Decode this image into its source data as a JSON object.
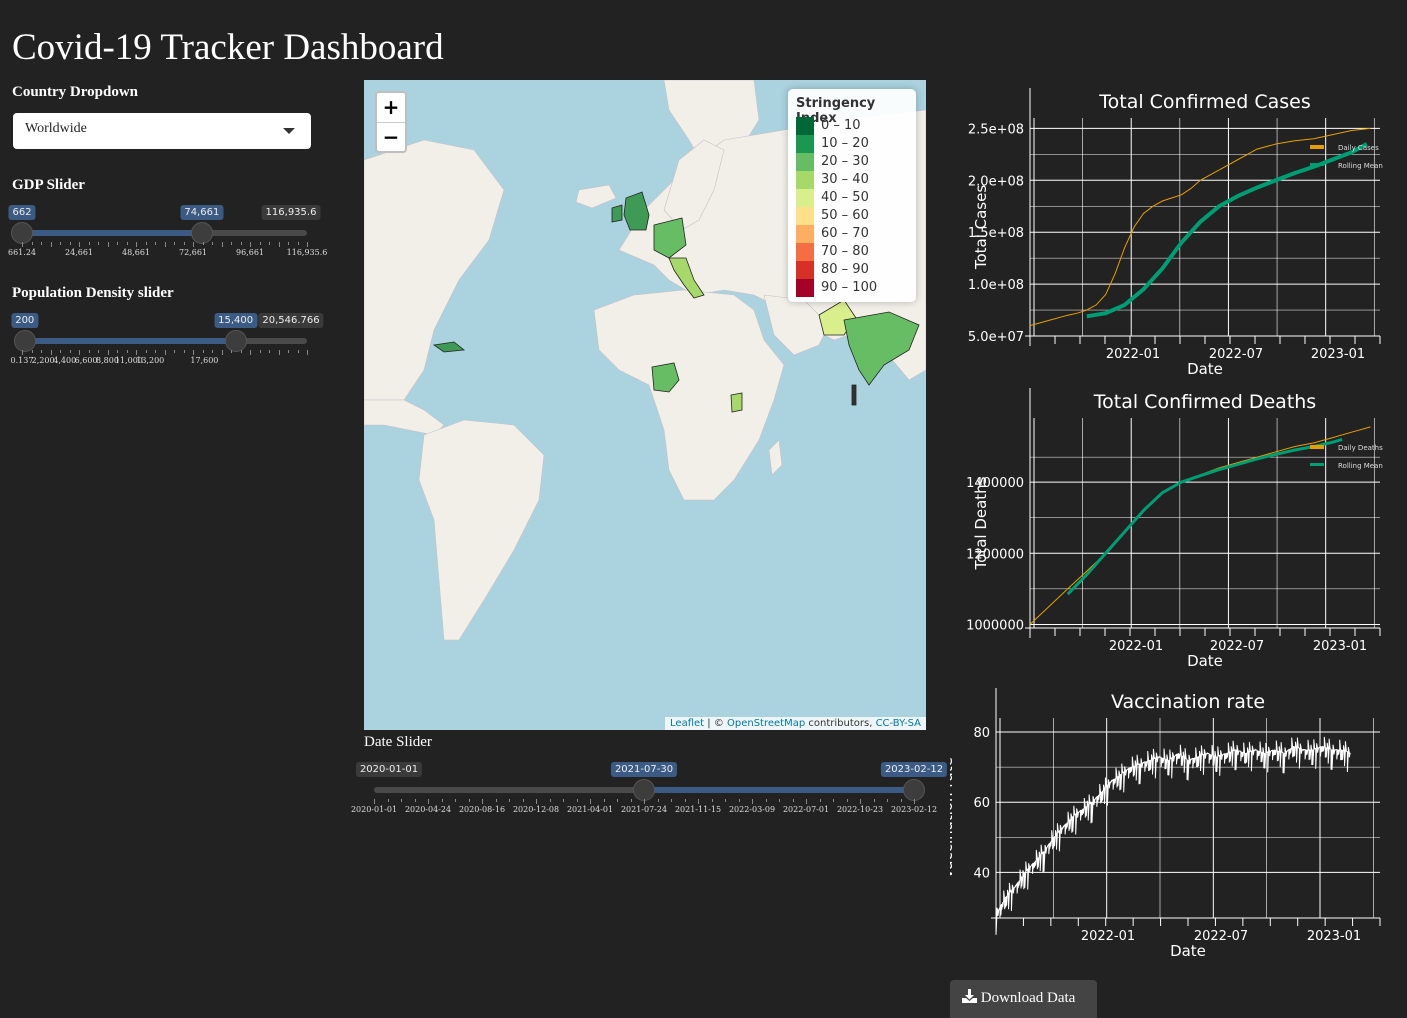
{
  "title": "Covid-19 Tracker Dashboard",
  "country": {
    "label": "Country Dropdown",
    "selected": "Worldwide"
  },
  "gdp": {
    "label": "GDP Slider",
    "low": "662",
    "high": "74,661",
    "max": "116,935.6",
    "low_frac": 0.0,
    "high_frac": 0.631,
    "ticks": [
      "661.24",
      "24,661",
      "48,661",
      "72,661",
      "96,661",
      "116,935.6"
    ]
  },
  "density": {
    "label": "Population Density slider",
    "low": "200",
    "high": "15,400",
    "max": "20,546.766",
    "low_frac": 0.0097,
    "high_frac": 0.7495,
    "ticks": [
      "0.137",
      "2,200",
      "4,400",
      "6,600",
      "8,800",
      "11,000",
      "13,200",
      "17,600"
    ]
  },
  "date": {
    "label": "Date Slider",
    "min": "2020-01-01",
    "low": "2021-07-30",
    "high": "2023-02-12",
    "ticks": [
      "2020-01-01",
      "2020-04-24",
      "2020-08-16",
      "2020-12-08",
      "2021-04-01",
      "2021-07-24",
      "2021-11-15",
      "2022-03-09",
      "2022-07-01",
      "2022-10-23",
      "2023-02-12"
    ]
  },
  "map": {
    "zoom_in": "+",
    "zoom_out": "−",
    "legend": {
      "title": "Stringency Index",
      "items": [
        {
          "label": "0 – 10",
          "color": "#006837"
        },
        {
          "label": "10 – 20",
          "color": "#1a9850"
        },
        {
          "label": "20 – 30",
          "color": "#66bd63"
        },
        {
          "label": "30 – 40",
          "color": "#a6d96a"
        },
        {
          "label": "40 – 50",
          "color": "#d9ef8b"
        },
        {
          "label": "50 – 60",
          "color": "#fee08b"
        },
        {
          "label": "60 – 70",
          "color": "#fdae61"
        },
        {
          "label": "70 – 80",
          "color": "#f46d43"
        },
        {
          "label": "80 – 90",
          "color": "#d73027"
        },
        {
          "label": "90 – 100",
          "color": "#a50026"
        }
      ]
    },
    "attribution": {
      "leaflet": "Leaflet",
      "sep": " | © ",
      "osm": "OpenStreetMap",
      "contrib": " contributors, ",
      "license": "CC-BY-SA"
    }
  },
  "download": {
    "label": "Download Data",
    "icon": "download-icon"
  },
  "chart_data": [
    {
      "type": "line",
      "title": "Total Confirmed Cases",
      "xlabel": "Date",
      "ylabel": "Total Cases",
      "x_ticks": [
        "2022-01",
        "2022-07",
        "2023-01"
      ],
      "y_ticks": [
        "5.0e+07",
        "1.0e+08",
        "1.5e+08",
        "2.0e+08",
        "2.5e+08"
      ],
      "ylim": [
        50000000,
        260000000
      ],
      "xlim": [
        0,
        18.5
      ],
      "legend": [
        "Daily Cases",
        "Rolling Mean"
      ],
      "series": [
        {
          "name": "Daily Cases",
          "color": "#e69f00",
          "width": 1,
          "x": [
            0,
            1,
            2,
            2.5,
            3,
            3.5,
            4,
            4.5,
            5,
            5.5,
            6,
            6.5,
            7,
            7.5,
            8,
            8.5,
            9,
            10,
            11,
            12,
            13,
            14,
            15,
            16,
            17,
            18
          ],
          "y": [
            60000000,
            65000000,
            70000000,
            72000000,
            75000000,
            80000000,
            90000000,
            110000000,
            135000000,
            155000000,
            168000000,
            175000000,
            180000000,
            183000000,
            186000000,
            192000000,
            200000000,
            210000000,
            220000000,
            230000000,
            235000000,
            238000000,
            240000000,
            244000000,
            248000000,
            250000000
          ]
        },
        {
          "name": "Rolling Mean",
          "color": "#009e73",
          "width": 4,
          "x": [
            3,
            4,
            5,
            6,
            7,
            8,
            9,
            10,
            11,
            12,
            13,
            14,
            15,
            16,
            17,
            17.8
          ],
          "y": [
            69000000,
            72000000,
            80000000,
            95000000,
            115000000,
            140000000,
            160000000,
            175000000,
            185000000,
            193000000,
            200000000,
            207000000,
            213000000,
            220000000,
            227000000,
            235000000
          ]
        }
      ]
    },
    {
      "type": "line",
      "title": "Total Confirmed Deaths",
      "xlabel": "Date",
      "ylabel": "Total Deaths",
      "x_ticks": [
        "2022-01",
        "2022-07",
        "2023-01"
      ],
      "y_ticks": [
        "1000000",
        "1200000",
        "1400000"
      ],
      "ylim": [
        990000,
        1580000
      ],
      "xlim": [
        0,
        18.5
      ],
      "legend": [
        "Daily Deaths",
        "Rolling Mean"
      ],
      "series": [
        {
          "name": "Daily Deaths",
          "color": "#e69f00",
          "width": 1,
          "x": [
            0,
            1,
            2,
            3,
            4,
            5,
            6,
            7,
            8,
            9,
            10,
            11,
            12,
            13,
            14,
            15,
            16,
            17,
            18
          ],
          "y": [
            1000000,
            1050000,
            1100000,
            1150000,
            1200000,
            1260000,
            1320000,
            1370000,
            1400000,
            1420000,
            1440000,
            1455000,
            1470000,
            1485000,
            1500000,
            1510000,
            1525000,
            1540000,
            1555000
          ]
        },
        {
          "name": "Rolling Mean",
          "color": "#009e73",
          "width": 3,
          "x": [
            2,
            3,
            4,
            5,
            6,
            7,
            8,
            9,
            10,
            11,
            12,
            13,
            14,
            15,
            16,
            16.5
          ],
          "y": [
            1085000,
            1140000,
            1200000,
            1260000,
            1320000,
            1370000,
            1400000,
            1418000,
            1435000,
            1450000,
            1465000,
            1478000,
            1490000,
            1500000,
            1512000,
            1520000
          ]
        }
      ]
    },
    {
      "type": "line",
      "title": "Vaccination rate",
      "xlabel": "Date",
      "ylabel": "Vaccination rate",
      "x_ticks": [
        "2022-01",
        "2022-07",
        "2023-01"
      ],
      "y_ticks": [
        "40",
        "60",
        "80"
      ],
      "ylim": [
        27,
        84
      ],
      "xlim": [
        0,
        20
      ],
      "series": [
        {
          "name": "",
          "color": "#ffffff",
          "width": 1,
          "x": [
            0,
            0.5,
            1,
            1.5,
            2,
            2.5,
            3,
            3.5,
            4,
            4.5,
            5,
            5.5,
            6,
            6.5,
            7,
            7.5,
            8,
            8.5,
            9,
            9.5,
            10,
            10.5,
            11,
            11.5,
            12,
            12.5,
            13,
            13.5,
            14,
            14.5,
            15,
            15.5,
            16,
            16.5,
            17,
            17.5,
            18,
            18.5
          ],
          "y": [
            28,
            33,
            36,
            40,
            43,
            46,
            50,
            53,
            56,
            58,
            60,
            63,
            66,
            68,
            70,
            71,
            72,
            73,
            72,
            74,
            72,
            73,
            74,
            73,
            74,
            75,
            74,
            75,
            74,
            75,
            74,
            76,
            75,
            75,
            76,
            75,
            75,
            74
          ]
        }
      ]
    }
  ]
}
